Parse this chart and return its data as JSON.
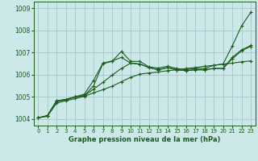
{
  "background_color": "#cce8e8",
  "grid_color": "#aacccc",
  "line_color": "#1a5c1a",
  "title": "Graphe pression niveau de la mer (hPa)",
  "xlim": [
    -0.5,
    23.5
  ],
  "ylim": [
    1003.7,
    1009.3
  ],
  "yticks": [
    1004,
    1005,
    1006,
    1007,
    1008,
    1009
  ],
  "xticks": [
    0,
    1,
    2,
    3,
    4,
    5,
    6,
    7,
    8,
    9,
    10,
    11,
    12,
    13,
    14,
    15,
    16,
    17,
    18,
    19,
    20,
    21,
    22,
    23
  ],
  "series": [
    [
      1004.05,
      1004.15,
      1004.8,
      1004.85,
      1005.0,
      1005.05,
      1005.5,
      1006.5,
      1006.6,
      1007.05,
      1006.6,
      1006.6,
      1006.35,
      1006.3,
      1006.38,
      1006.28,
      1006.22,
      1006.28,
      1006.28,
      1006.42,
      1006.48,
      1007.3,
      1008.2,
      1008.82
    ],
    [
      1004.05,
      1004.15,
      1004.82,
      1004.88,
      1005.0,
      1005.12,
      1005.75,
      1006.52,
      1006.62,
      1006.78,
      1006.52,
      1006.48,
      1006.32,
      1006.22,
      1006.32,
      1006.22,
      1006.18,
      1006.22,
      1006.22,
      1006.28,
      1006.28,
      1006.78,
      1007.12,
      1007.32
    ],
    [
      1004.05,
      1004.15,
      1004.82,
      1004.88,
      1005.0,
      1005.05,
      1005.35,
      1005.65,
      1005.98,
      1006.28,
      1006.52,
      1006.48,
      1006.32,
      1006.22,
      1006.32,
      1006.22,
      1006.18,
      1006.22,
      1006.22,
      1006.28,
      1006.28,
      1006.72,
      1007.08,
      1007.28
    ],
    [
      1004.05,
      1004.12,
      1004.72,
      1004.82,
      1004.92,
      1005.02,
      1005.18,
      1005.32,
      1005.48,
      1005.68,
      1005.88,
      1006.02,
      1006.08,
      1006.12,
      1006.18,
      1006.22,
      1006.28,
      1006.32,
      1006.38,
      1006.42,
      1006.48,
      1006.52,
      1006.58,
      1006.62
    ]
  ]
}
